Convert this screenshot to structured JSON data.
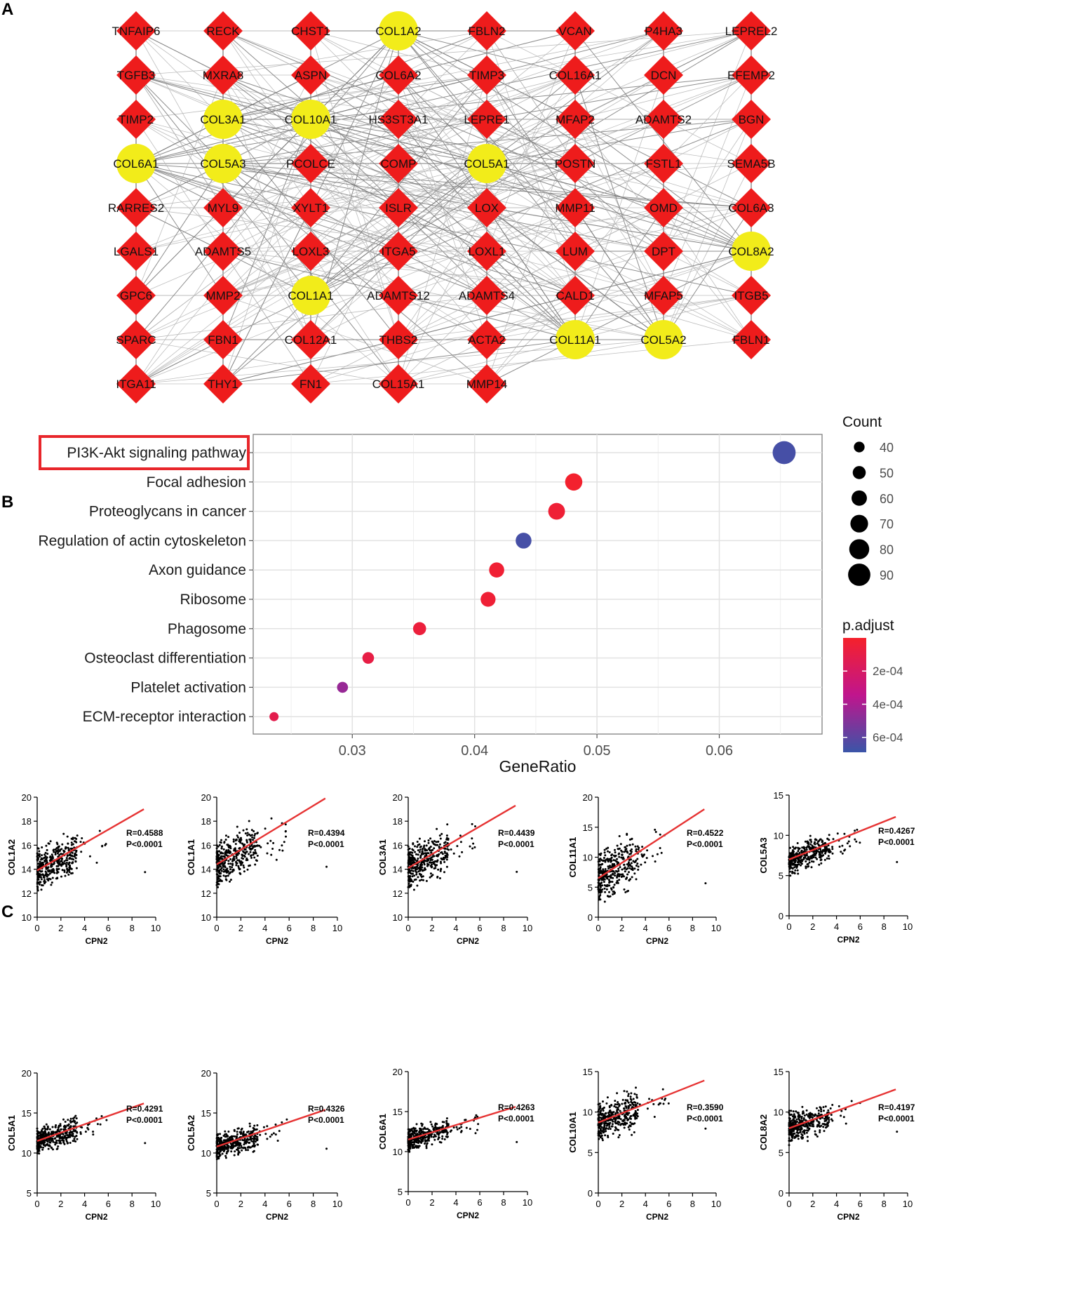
{
  "panel_labels": [
    "A",
    "B",
    "C"
  ],
  "chart_data": [
    {
      "type": "network",
      "panel": "A",
      "node_colors": {
        "hub": "#f2ec1a",
        "regular": "#ee1c1c",
        "edge": "#9a9a9a"
      },
      "columns": [
        [
          "TNFAIP6",
          "TGFB3",
          "TIMP2",
          "COL6A1",
          "RARRES2",
          "LGALS1",
          "GPC6",
          "SPARC",
          "ITGA11"
        ],
        [
          "RECK",
          "MXRA8",
          "COL3A1",
          "COL5A3",
          "MYL9",
          "ADAMTS5",
          "MMP2",
          "FBN1",
          "THY1"
        ],
        [
          "CHST1",
          "ASPN",
          "COL10A1",
          "PCOLCE",
          "XYLT1",
          "LOXL3",
          "COL1A1",
          "COL12A1",
          "FN1"
        ],
        [
          "COL1A2",
          "COL6A2",
          "HS3ST3A1",
          "COMP",
          "ISLR",
          "ITGA5",
          "ADAMTS12",
          "THBS2",
          "COL15A1"
        ],
        [
          "FBLN2",
          "TIMP3",
          "LEPRE1",
          "COL5A1",
          "LOX",
          "LOXL1",
          "ADAMTS4",
          "ACTA2",
          "MMP14"
        ],
        [
          "VCAN",
          "COL16A1",
          "MFAP2",
          "POSTN",
          "MMP11",
          "LUM",
          "CALD1",
          "COL11A1"
        ],
        [
          "P4HA3",
          "DCN",
          "ADAMTS2",
          "FSTL1",
          "OMD",
          "DPT",
          "MFAP5",
          "COL5A2"
        ],
        [
          "LEPREL2",
          "EFEMP2",
          "BGN",
          "SEMA5B",
          "COL6A3",
          "COL8A2",
          "ITGB5",
          "FBLN1"
        ]
      ],
      "hub_genes": [
        "COL1A2",
        "COL3A1",
        "COL10A1",
        "COL6A1",
        "COL5A3",
        "COL5A1",
        "COL8A2",
        "COL1A1",
        "COL11A1",
        "COL5A2"
      ]
    },
    {
      "type": "scatter",
      "subtype": "dot-plot",
      "panel": "B",
      "categories": [
        "PI3K-Akt signaling pathway",
        "Focal adhesion",
        "Proteoglycans in cancer",
        "Regulation of actin cytoskeleton",
        "Axon guidance",
        "Ribosome",
        "Phagosome",
        "Osteoclast differentiation",
        "Platelet activation",
        "ECM-receptor interaction"
      ],
      "gene_ratio": [
        0.0653,
        0.0481,
        0.0467,
        0.044,
        0.0418,
        0.0411,
        0.0355,
        0.0313,
        0.0292,
        0.0236
      ],
      "count": [
        93,
        68,
        66,
        62,
        59,
        58,
        50,
        44,
        41,
        33
      ],
      "p_adjust": [
        0.00066,
        1e-05,
        4e-05,
        0.00066,
        3e-05,
        4e-05,
        6e-05,
        9e-05,
        0.00045,
        0.00012
      ],
      "highlighted": "PI3K-Akt signaling pathway",
      "xlabel": "GeneRatio",
      "xlim": [
        0.0219,
        0.0684
      ],
      "xticks": [
        0.03,
        0.04,
        0.05,
        0.06
      ],
      "xtick_labels": [
        "0.03",
        "0.04",
        "0.05",
        "0.06"
      ],
      "size_legend": {
        "title": "Count",
        "values": [
          40,
          50,
          60,
          70,
          80,
          90
        ]
      },
      "color_legend": {
        "title": "p.adjust",
        "range": [
          0,
          0.00069
        ],
        "ticks": [
          0.0002,
          0.0004,
          0.0006
        ],
        "tick_labels": [
          "2e-04",
          "4e-04",
          "6e-04"
        ],
        "low_color": "#f5212b",
        "mid_color": "#c0158d",
        "high_color": "#3a55a8"
      },
      "colors": {
        "highlight_box": "#e8262b",
        "grid": "#e2e2e2",
        "panel_border": "#7f7f7f"
      }
    },
    {
      "type": "scatter",
      "panel": "C",
      "xlabel": "CPN2",
      "xlim": [
        0,
        10
      ],
      "xticks": [
        0,
        2,
        4,
        6,
        8,
        10
      ],
      "line_color": "#e63333",
      "point_color": "#000000",
      "plots": [
        {
          "ylabel": "COL1A2",
          "ylim": [
            10,
            20
          ],
          "yticks": [
            10,
            12,
            14,
            16,
            18,
            20
          ],
          "r_text": "R=0.4588",
          "p_text": "P<0.0001",
          "fit": [
            [
              0,
              13.9
            ],
            [
              9,
              19.0
            ]
          ],
          "y_center": 14.8,
          "y_spread": 1.3
        },
        {
          "ylabel": "COL1A1",
          "ylim": [
            10,
            20
          ],
          "yticks": [
            10,
            12,
            14,
            16,
            18,
            20
          ],
          "r_text": "R=0.4394",
          "p_text": "P<0.0001",
          "fit": [
            [
              0,
              14.4
            ],
            [
              9,
              19.9
            ]
          ],
          "y_center": 15.4,
          "y_spread": 1.5
        },
        {
          "ylabel": "COL3A1",
          "ylim": [
            10,
            20
          ],
          "yticks": [
            10,
            12,
            14,
            16,
            18,
            20
          ],
          "r_text": "R=0.4439",
          "p_text": "P<0.0001",
          "fit": [
            [
              0,
              14.1
            ],
            [
              9,
              19.3
            ]
          ],
          "y_center": 14.9,
          "y_spread": 1.4
        },
        {
          "ylabel": "COL11A1",
          "ylim": [
            0,
            20
          ],
          "yticks": [
            0,
            5,
            10,
            15,
            20
          ],
          "r_text": "R=0.4522",
          "p_text": "P<0.0001",
          "fit": [
            [
              0,
              6.5
            ],
            [
              9,
              18.0
            ]
          ],
          "y_center": 8.3,
          "y_spread": 3.3
        },
        {
          "ylabel": "COL5A3",
          "ylim": [
            0,
            15
          ],
          "yticks": [
            0,
            5,
            10,
            15
          ],
          "r_text": "R=0.4267",
          "p_text": "P<0.0001",
          "fit": [
            [
              0,
              7.0
            ],
            [
              9,
              12.3
            ]
          ],
          "y_center": 7.8,
          "y_spread": 1.4
        },
        {
          "ylabel": "COL5A1",
          "ylim": [
            5,
            20
          ],
          "yticks": [
            5,
            10,
            15,
            20
          ],
          "r_text": "R=0.4291",
          "p_text": "P<0.0001",
          "fit": [
            [
              0,
              11.5
            ],
            [
              9,
              16.2
            ]
          ],
          "y_center": 12.2,
          "y_spread": 1.2
        },
        {
          "ylabel": "COL5A2",
          "ylim": [
            5,
            20
          ],
          "yticks": [
            5,
            10,
            15,
            20
          ],
          "r_text": "R=0.4326",
          "p_text": "P<0.0001",
          "fit": [
            [
              0,
              10.8
            ],
            [
              9,
              15.4
            ]
          ],
          "y_center": 11.5,
          "y_spread": 1.2
        },
        {
          "ylabel": "COL6A1",
          "ylim": [
            5,
            20
          ],
          "yticks": [
            5,
            10,
            15,
            20
          ],
          "r_text": "R=0.4263",
          "p_text": "P<0.0001",
          "fit": [
            [
              0,
              11.5
            ],
            [
              9,
              15.6
            ]
          ],
          "y_center": 12.0,
          "y_spread": 1.0
        },
        {
          "ylabel": "COL10A1",
          "ylim": [
            0,
            15
          ],
          "yticks": [
            0,
            5,
            10,
            15
          ],
          "r_text": "R=0.3590",
          "p_text": "P<0.0001",
          "fit": [
            [
              0,
              8.7
            ],
            [
              9,
              13.9
            ]
          ],
          "y_center": 9.4,
          "y_spread": 1.8
        },
        {
          "ylabel": "COL8A2",
          "ylim": [
            0,
            15
          ],
          "yticks": [
            0,
            5,
            10,
            15
          ],
          "r_text": "R=0.4197",
          "p_text": "P<0.0001",
          "fit": [
            [
              0,
              8.0
            ],
            [
              9,
              12.8
            ]
          ],
          "y_center": 8.7,
          "y_spread": 1.4
        }
      ]
    }
  ]
}
